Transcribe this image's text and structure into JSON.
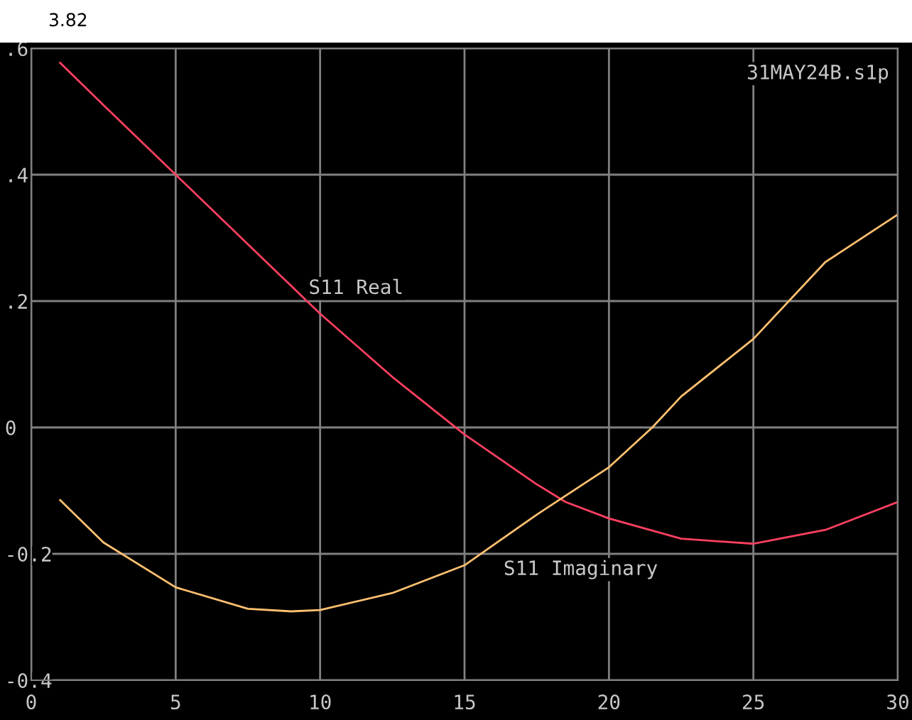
{
  "chart_data": {
    "type": "line",
    "title": "3.82",
    "annotations": [
      "31MAY24B.s1p"
    ],
    "xlim": [
      0,
      30
    ],
    "xticks": [
      0,
      5,
      10,
      15,
      20,
      25,
      30
    ],
    "ylim": [
      -0.4,
      0.6
    ],
    "yticks": [
      {
        "value": -0.4,
        "label": "-0.4"
      },
      {
        "value": -0.2,
        "label": "-0.2"
      },
      0,
      {
        "value": 0.2,
        "label": ".2"
      },
      {
        "value": 0.4,
        "label": ".4"
      },
      {
        "value": 0.6,
        "label": ".6"
      }
    ],
    "grid": true,
    "marker": "none",
    "line_style": "solid",
    "series": [
      {
        "name": "S11 Real",
        "color": "#ff4060",
        "x": [
          1,
          2.5,
          5,
          7.5,
          10,
          12.5,
          15,
          17.5,
          18.5,
          20,
          22.5,
          25,
          27.5,
          30
        ],
        "values": [
          0.577,
          0.51,
          0.4,
          0.29,
          0.18,
          0.08,
          -0.011,
          -0.09,
          -0.118,
          -0.144,
          -0.176,
          -0.184,
          -0.162,
          -0.118
        ]
      },
      {
        "name": "S11 Imaginary",
        "color": "#ffc070",
        "x": [
          1,
          2.5,
          5,
          7.5,
          9,
          10,
          12.5,
          15,
          17.5,
          20,
          21.5,
          22.5,
          25,
          27.5,
          30
        ],
        "values": [
          -0.115,
          -0.182,
          -0.253,
          -0.287,
          -0.291,
          -0.289,
          -0.262,
          -0.218,
          -0.138,
          -0.063,
          0.0,
          0.049,
          0.14,
          0.262,
          0.337
        ]
      }
    ]
  }
}
